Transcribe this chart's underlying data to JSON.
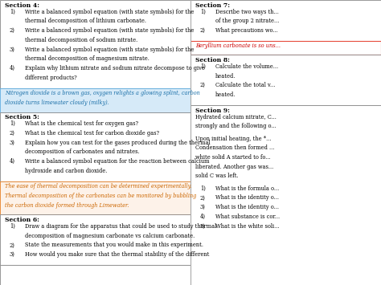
{
  "left_sections": [
    {
      "type": "box",
      "title": "Section 4:",
      "items": [
        [
          "1)",
          "Write a balanced symbol equation (with state symbols) for the",
          "thermal decomposition of lithium carbonate."
        ],
        [
          "2)",
          "Write a balanced symbol equation (with state symbols) for the",
          "thermal decomposition of sodium nitrate."
        ],
        [
          "3)",
          "Write a balanced symbol equation (with state symbols) for the",
          "thermal decomposition of magnesium nitrate."
        ],
        [
          "4)",
          "Explain why lithium nitrate and sodium nitrate decompose to give",
          "different products?"
        ]
      ]
    },
    {
      "type": "highlight",
      "bg": "#d6eaf8",
      "border": "#5dade2",
      "color": "#1a6fa8",
      "text": "Nitrogen dioxide is a brown gas, oxygen relights a glowing splint, carbon\ndioxide turns limewater cloudy (milky)."
    },
    {
      "type": "box",
      "title": "Section 5:",
      "items": [
        [
          "1)",
          "What is the chemical test for oxygen gas?",
          ""
        ],
        [
          "2)",
          "What is the chemical test for carbon dioxide gas?",
          ""
        ],
        [
          "3)",
          "Explain how you can test for the gases produced during the thermal",
          "decomposition of carbonates and nitrates."
        ],
        [
          "4)",
          "Write a balanced symbol equation for the reaction between calcium",
          "hydroxide and carbon dioxide."
        ]
      ]
    },
    {
      "type": "highlight",
      "bg": "#fdf2e9",
      "border": "#e67e22",
      "color": "#cc6600",
      "text": "The ease of thermal decomposition can be determined experimentally.\nThermal decomposition of the carbonates can be monitored by bubbling\nthe carbon dioxide formed through Limewater."
    },
    {
      "type": "box",
      "title": "Section 6:",
      "items": [
        [
          "1)",
          "Draw a diagram for the apparatus that could be used to study thermal",
          "decomposition of magnesium carbonate vs calcium carbonate."
        ],
        [
          "2)",
          "State the measurements that you would make in this experiment.",
          ""
        ],
        [
          "3)",
          "How would you make sure that the thermal stability of the different",
          ""
        ]
      ]
    }
  ],
  "right_sections": [
    {
      "type": "box",
      "title": "Section 7:",
      "items": [
        [
          "1)",
          "Describe two ways th...",
          "of the group 2 nitrate..."
        ],
        [
          "2)",
          "What precautions wo...",
          ""
        ]
      ]
    },
    {
      "type": "highlight",
      "bg": "#ffffff",
      "border": "#e74c3c",
      "color": "#cc0000",
      "text": "Beryllium carbonate is so uns..."
    },
    {
      "type": "box",
      "title": "Section 8:",
      "items": [
        [
          "1)",
          "Calculate the volume...",
          "heated."
        ],
        [
          "2)",
          "Calculate the total v...",
          "heated."
        ]
      ]
    },
    {
      "type": "section9",
      "title": "Section 9:",
      "intro1": "Hydrated calcium nitrate, C...",
      "intro2": "strongly and the following o...",
      "para": [
        "Upon initial heating, the *...",
        "Condensation then formed ...",
        "white solid A started to fo...",
        "liberated. Another gas was...",
        "solid C was left."
      ],
      "items": [
        [
          "1)",
          "What is the formula o..."
        ],
        [
          "2)",
          "What is the identity o..."
        ],
        [
          "3)",
          "What is the identity o..."
        ],
        [
          "4)",
          "What substance is cor..."
        ],
        [
          "5)",
          "What is the white soli..."
        ]
      ]
    }
  ]
}
